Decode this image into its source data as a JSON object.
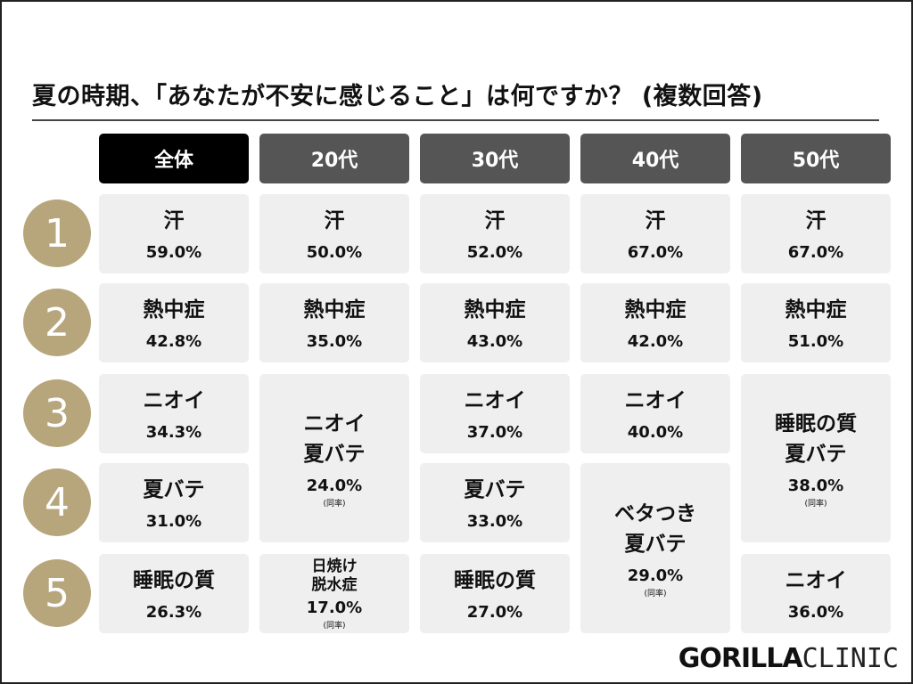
{
  "title": "夏の時期、「あなたが不安に感じること」は何ですか？ (複数回答)",
  "headers": [
    "全体",
    "20代",
    "30代",
    "40代",
    "50代"
  ],
  "ranks": [
    "1",
    "2",
    "3",
    "4",
    "5"
  ],
  "col_all": {
    "r1": {
      "item": "汗",
      "pct": "59.0%"
    },
    "r2": {
      "item": "熱中症",
      "pct": "42.8%"
    },
    "r3": {
      "item": "ニオイ",
      "pct": "34.3%"
    },
    "r4": {
      "item": "夏バテ",
      "pct": "31.0%"
    },
    "r5": {
      "item": "睡眠の質",
      "pct": "26.3%"
    }
  },
  "col_20": {
    "r1": {
      "item": "汗",
      "pct": "50.0%"
    },
    "r2": {
      "item": "熱中症",
      "pct": "35.0%"
    },
    "r34": {
      "item": "ニオイ\n夏バテ",
      "pct": "24.0%",
      "note": "(同率)"
    },
    "r5": {
      "item": "日焼け\n脱水症",
      "pct": "17.0%",
      "note": "(同率)"
    }
  },
  "col_30": {
    "r1": {
      "item": "汗",
      "pct": "52.0%"
    },
    "r2": {
      "item": "熱中症",
      "pct": "43.0%"
    },
    "r3": {
      "item": "ニオイ",
      "pct": "37.0%"
    },
    "r4": {
      "item": "夏バテ",
      "pct": "33.0%"
    },
    "r5": {
      "item": "睡眠の質",
      "pct": "27.0%"
    }
  },
  "col_40": {
    "r1": {
      "item": "汗",
      "pct": "67.0%"
    },
    "r2": {
      "item": "熱中症",
      "pct": "42.0%"
    },
    "r3": {
      "item": "ニオイ",
      "pct": "40.0%"
    },
    "r45": {
      "item": "ベタつき\n夏バテ",
      "pct": "29.0%",
      "note": "(同率)"
    }
  },
  "col_50": {
    "r1": {
      "item": "汗",
      "pct": "67.0%"
    },
    "r2": {
      "item": "熱中症",
      "pct": "51.0%"
    },
    "r34": {
      "item": "睡眠の質\n夏バテ",
      "pct": "38.0%",
      "note": "(同率)"
    },
    "r5": {
      "item": "ニオイ",
      "pct": "36.0%"
    }
  },
  "logo": {
    "bold": "GORILLA",
    "thin": "CLINIC"
  }
}
